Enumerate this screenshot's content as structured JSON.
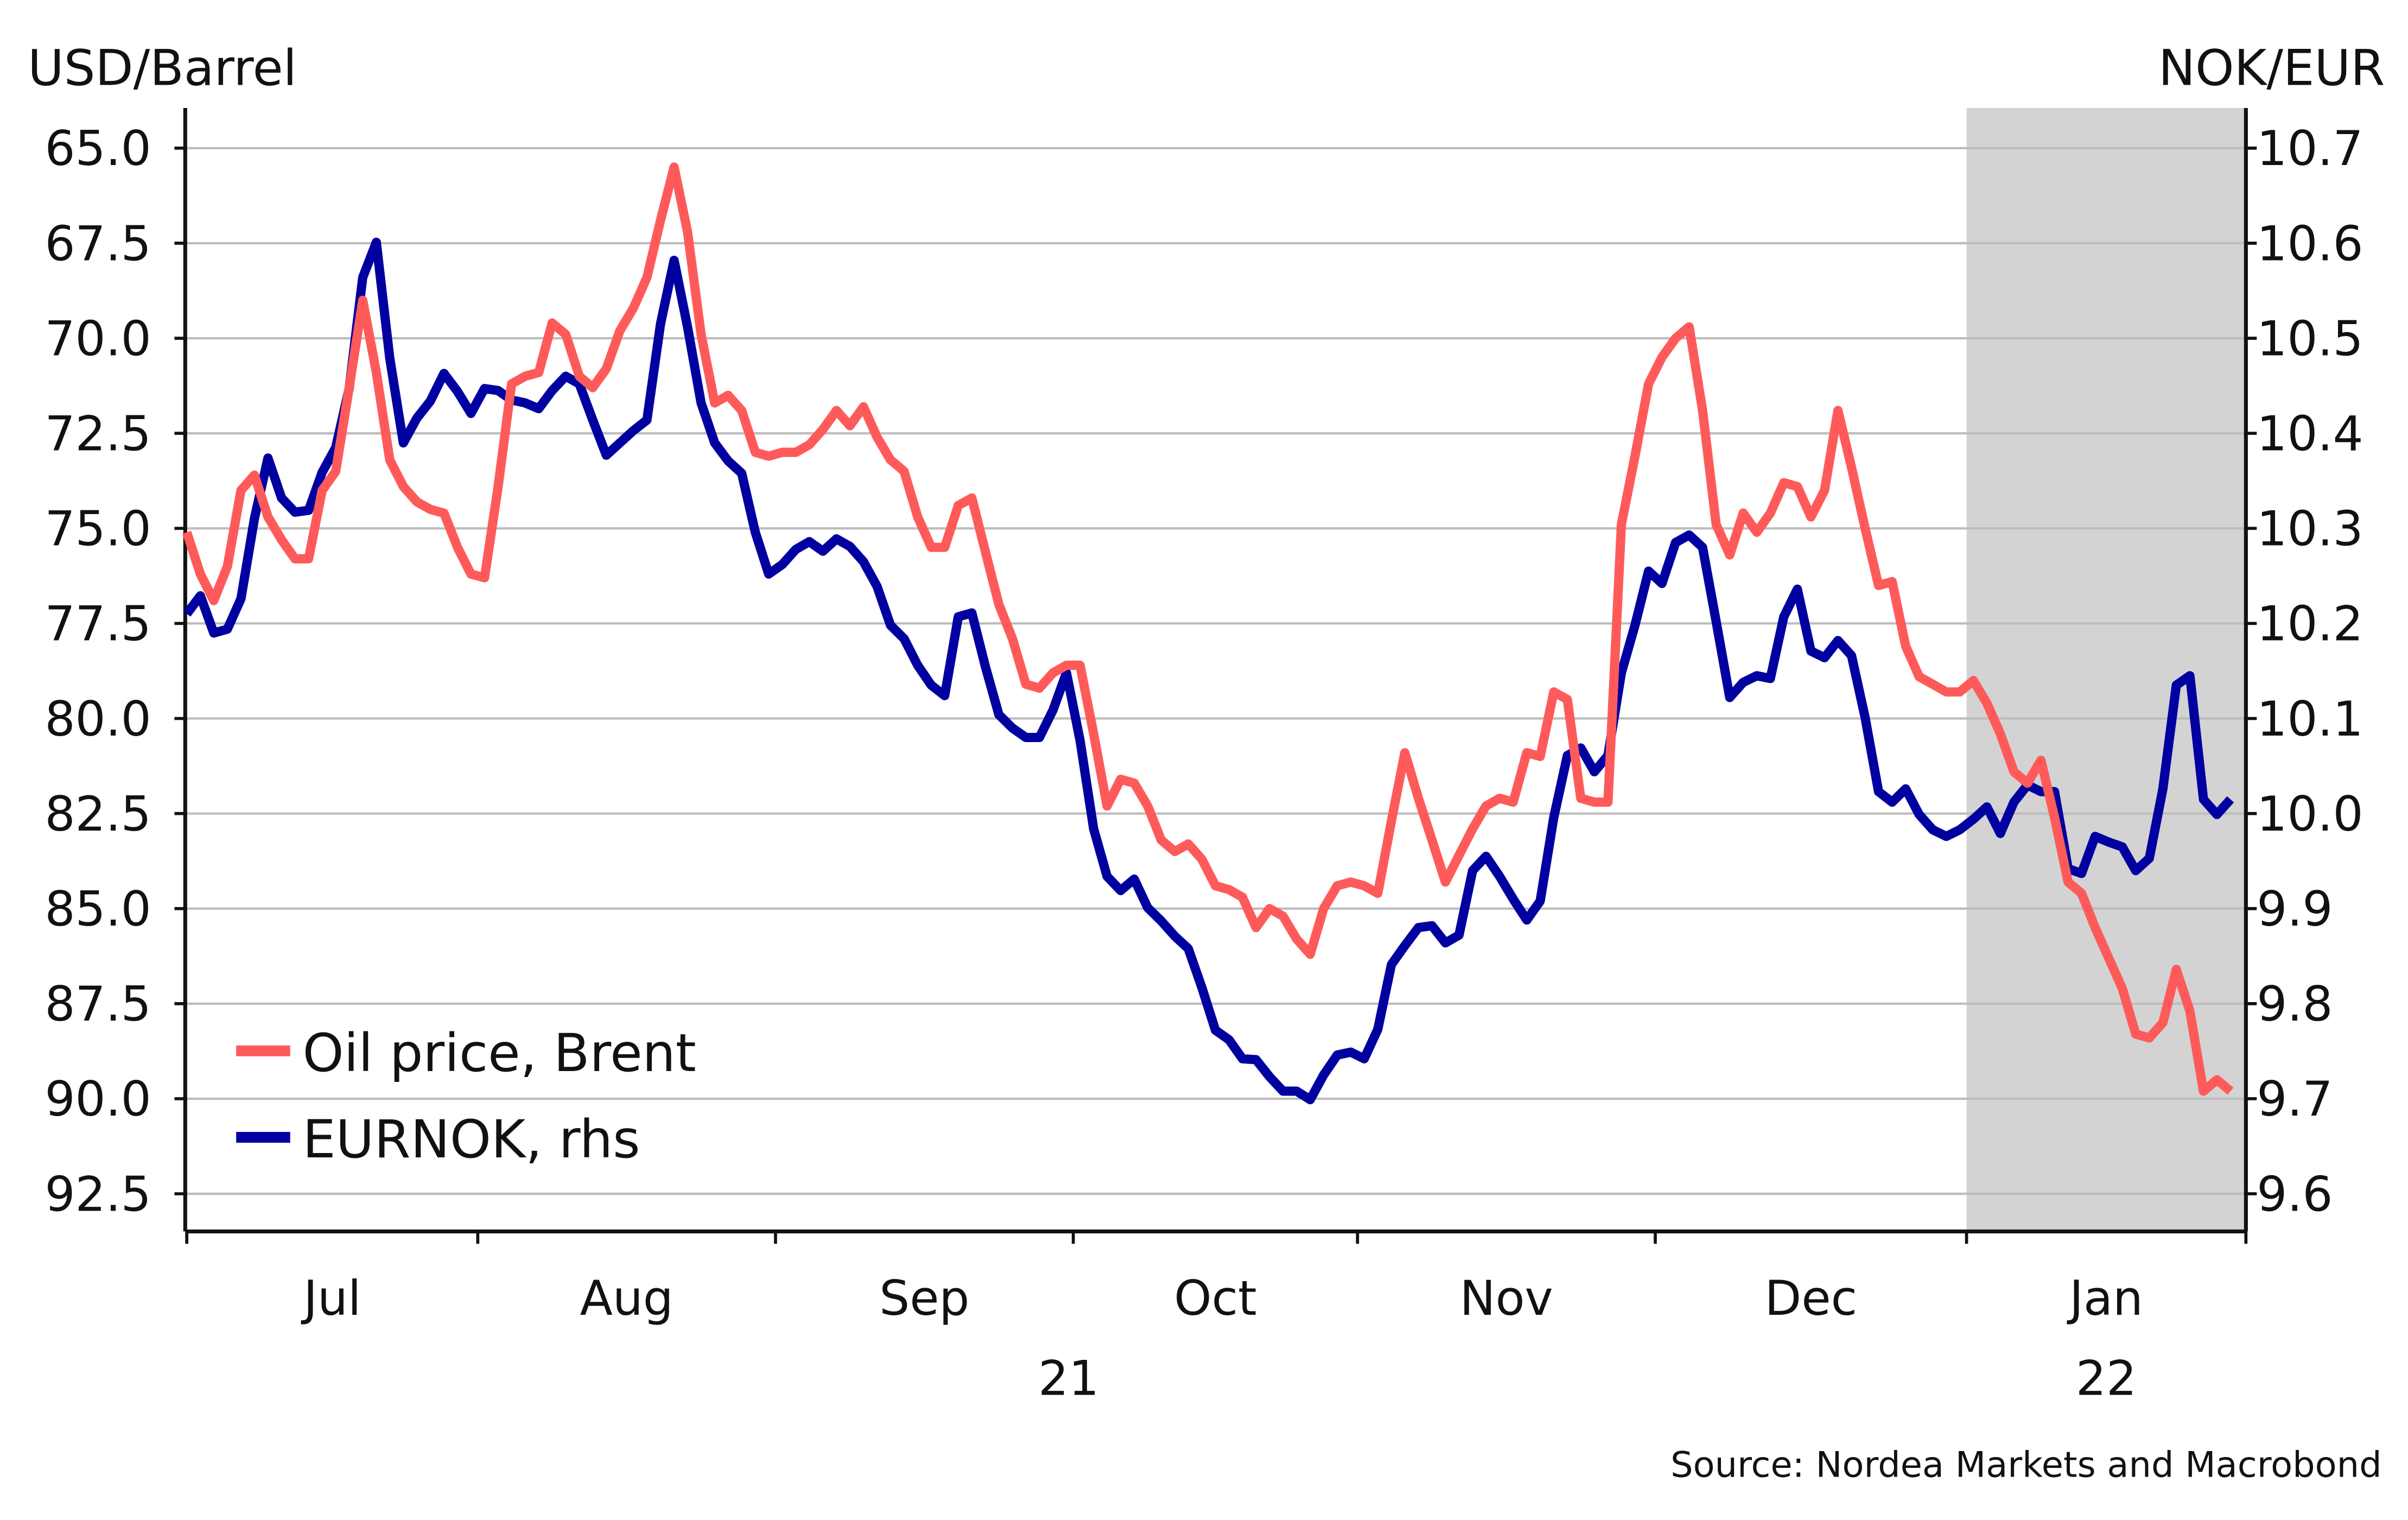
{
  "chart_data": {
    "type": "line",
    "title": "",
    "left_axis": {
      "label": "USD/Barrel",
      "inverted": true,
      "range": [
        64.0,
        93.5
      ],
      "ticks": [
        "65.0",
        "67.5",
        "70.0",
        "72.5",
        "75.0",
        "77.5",
        "80.0",
        "82.5",
        "85.0",
        "87.5",
        "90.0",
        "92.5"
      ]
    },
    "right_axis": {
      "label": "NOK/EUR",
      "range": [
        9.55,
        10.74
      ],
      "ticks": [
        "10.7",
        "10.6",
        "10.5",
        "10.4",
        "10.3",
        "10.2",
        "10.1",
        "10.0",
        "9.9",
        "9.8",
        "9.7",
        "9.6"
      ]
    },
    "x_axis": {
      "start": "2021-07-01",
      "frequency": "business-daily",
      "month_labels": [
        "Jul",
        "Aug",
        "Sep",
        "Oct",
        "Nov",
        "Dec",
        "Jan"
      ],
      "year_labels": [
        "21",
        "22"
      ]
    },
    "grid": true,
    "legend_placement": "bottom-left",
    "shaded_period": {
      "from": "2022-01-01",
      "color": "#d3d3d3"
    },
    "series": [
      {
        "name": "Oil price, Brent",
        "axis": "left",
        "color": "#ff5a5a",
        "values": [
          75.1,
          76.2,
          76.9,
          76.0,
          74.0,
          73.6,
          74.7,
          75.3,
          75.8,
          75.8,
          74.0,
          73.5,
          71.3,
          69.0,
          70.9,
          73.2,
          73.9,
          74.3,
          74.5,
          74.6,
          75.5,
          76.2,
          76.3,
          73.9,
          71.2,
          71.0,
          70.9,
          69.6,
          69.9,
          71.0,
          71.3,
          70.8,
          69.8,
          69.2,
          68.4,
          66.9,
          65.5,
          67.2,
          69.9,
          71.7,
          71.5,
          71.9,
          73.0,
          73.1,
          73.0,
          73.0,
          72.8,
          72.4,
          71.9,
          72.3,
          71.8,
          72.6,
          73.2,
          73.5,
          74.7,
          75.5,
          75.5,
          74.4,
          74.2,
          75.6,
          77.0,
          77.9,
          79.1,
          79.2,
          78.8,
          78.6,
          78.6,
          80.4,
          82.3,
          81.6,
          81.7,
          82.3,
          83.2,
          83.5,
          83.3,
          83.7,
          84.4,
          84.5,
          84.7,
          85.5,
          85.0,
          85.2,
          85.8,
          86.2,
          85.0,
          84.4,
          84.3,
          84.4,
          84.6,
          82.7,
          80.9,
          82.1,
          83.2,
          84.3,
          83.6,
          82.9,
          82.3,
          82.1,
          82.2,
          80.9,
          81.0,
          79.3,
          79.5,
          82.1,
          82.2,
          82.2,
          74.9,
          73.1,
          71.2,
          70.5,
          70.0,
          69.7,
          71.9,
          74.9,
          75.7,
          74.6,
          75.1,
          74.6,
          73.8,
          73.9,
          74.7,
          74.0,
          71.9,
          73.4,
          75.0,
          76.5,
          76.4,
          78.1,
          78.9,
          79.1,
          79.3,
          79.3,
          79.0,
          79.6,
          80.4,
          81.4,
          81.7,
          81.1,
          82.6,
          84.3,
          84.6,
          85.5,
          86.3,
          87.1,
          88.3,
          88.4,
          88.0,
          86.6,
          87.7,
          89.8,
          89.5,
          89.8
        ]
      },
      {
        "name": "EURNOK, rhs",
        "axis": "right",
        "color": "#0000a0",
        "values": [
          10.21,
          10.229,
          10.19,
          10.194,
          10.226,
          10.31,
          10.374,
          10.332,
          10.317,
          10.319,
          10.359,
          10.385,
          10.447,
          10.564,
          10.601,
          10.479,
          10.39,
          10.416,
          10.434,
          10.463,
          10.444,
          10.421,
          10.447,
          10.445,
          10.435,
          10.432,
          10.426,
          10.445,
          10.46,
          10.452,
          10.414,
          10.377,
          10.39,
          10.403,
          10.414,
          10.515,
          10.582,
          10.512,
          10.432,
          10.39,
          10.371,
          10.358,
          10.296,
          10.252,
          10.262,
          10.278,
          10.286,
          10.276,
          10.289,
          10.281,
          10.265,
          10.239,
          10.198,
          10.184,
          10.156,
          10.135,
          10.124,
          10.207,
          10.211,
          10.155,
          10.104,
          10.09,
          10.08,
          10.08,
          10.109,
          10.148,
          10.077,
          9.984,
          9.934,
          9.919,
          9.931,
          9.901,
          9.887,
          9.871,
          9.858,
          9.817,
          9.772,
          9.762,
          9.742,
          9.741,
          9.723,
          9.708,
          9.708,
          9.699,
          9.725,
          9.746,
          9.749,
          9.742,
          9.773,
          9.841,
          9.861,
          9.88,
          9.882,
          9.864,
          9.872,
          9.94,
          9.955,
          9.934,
          9.91,
          9.888,
          9.908,
          9.996,
          10.061,
          10.069,
          10.044,
          10.061,
          10.148,
          10.198,
          10.255,
          10.242,
          10.285,
          10.293,
          10.28,
          10.202,
          10.122,
          10.138,
          10.145,
          10.142,
          10.207,
          10.236,
          10.171,
          10.164,
          10.182,
          10.166,
          10.101,
          10.023,
          10.012,
          10.026,
          9.999,
          9.983,
          9.976,
          9.983,
          9.994,
          10.007,
          9.979,
          10.012,
          10.03,
          10.023,
          10.023,
          9.942,
          9.937,
          9.976,
          9.97,
          9.965,
          9.94,
          9.953,
          10.026,
          10.135,
          10.145,
          10.015,
          9.999,
          10.015
        ]
      }
    ],
    "source": "Source: Nordea Markets and Macrobond"
  }
}
